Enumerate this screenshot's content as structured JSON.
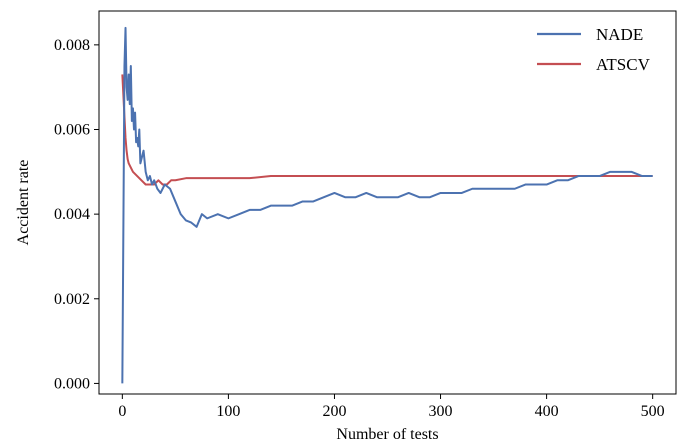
{
  "chart_data": {
    "type": "line",
    "title": "",
    "xlabel": "Number of tests",
    "ylabel": "Accident rate",
    "xlim": [
      -22,
      522
    ],
    "ylim": [
      -0.00025,
      0.0088
    ],
    "x_ticks": [
      0,
      100,
      200,
      300,
      400,
      500
    ],
    "x_tick_labels": [
      "0",
      "100",
      "200",
      "300",
      "400",
      "500"
    ],
    "y_ticks": [
      0.0,
      0.002,
      0.004,
      0.006,
      0.008
    ],
    "y_tick_labels": [
      "0.000",
      "0.002",
      "0.004",
      "0.006",
      "0.008"
    ],
    "grid": false,
    "legend_position": "top-right",
    "series": [
      {
        "name": "NADE",
        "color": "#4c72b0",
        "x": [
          0,
          2,
          3,
          4,
          5,
          6,
          7,
          8,
          9,
          10,
          11,
          12,
          13,
          14,
          15,
          16,
          17,
          18,
          20,
          22,
          24,
          26,
          28,
          30,
          33,
          36,
          40,
          45,
          50,
          55,
          60,
          65,
          70,
          75,
          80,
          90,
          100,
          110,
          120,
          130,
          140,
          150,
          160,
          170,
          180,
          190,
          200,
          210,
          220,
          230,
          240,
          250,
          260,
          270,
          280,
          290,
          300,
          310,
          320,
          330,
          340,
          350,
          360,
          370,
          380,
          390,
          400,
          410,
          420,
          430,
          440,
          450,
          460,
          470,
          480,
          490,
          500
        ],
        "values": [
          0.0,
          0.0075,
          0.0084,
          0.007,
          0.0067,
          0.0073,
          0.0066,
          0.0075,
          0.0062,
          0.0065,
          0.006,
          0.0064,
          0.0057,
          0.0058,
          0.0056,
          0.006,
          0.0052,
          0.0053,
          0.0055,
          0.005,
          0.0048,
          0.0049,
          0.0047,
          0.0048,
          0.0046,
          0.0045,
          0.0047,
          0.0046,
          0.0043,
          0.004,
          0.00385,
          0.0038,
          0.0037,
          0.004,
          0.0039,
          0.004,
          0.0039,
          0.004,
          0.0041,
          0.0041,
          0.0042,
          0.0042,
          0.0042,
          0.0043,
          0.0043,
          0.0044,
          0.0045,
          0.0044,
          0.0044,
          0.0045,
          0.0044,
          0.0044,
          0.0044,
          0.0045,
          0.0044,
          0.0044,
          0.0045,
          0.0045,
          0.0045,
          0.0046,
          0.0046,
          0.0046,
          0.0046,
          0.0046,
          0.0047,
          0.0047,
          0.0047,
          0.0048,
          0.0048,
          0.0049,
          0.0049,
          0.0049,
          0.005,
          0.005,
          0.005,
          0.0049,
          0.0049
        ]
      },
      {
        "name": "ATSCV",
        "color": "#c44e52",
        "x": [
          0,
          1,
          2,
          3,
          4,
          5,
          6,
          8,
          10,
          14,
          18,
          22,
          26,
          30,
          34,
          38,
          42,
          46,
          50,
          60,
          70,
          80,
          90,
          100,
          120,
          140,
          160,
          180,
          200,
          250,
          300,
          350,
          400,
          450,
          500
        ],
        "values": [
          0.0073,
          0.0068,
          0.0063,
          0.0058,
          0.0055,
          0.0053,
          0.0052,
          0.0051,
          0.005,
          0.0049,
          0.0048,
          0.0047,
          0.0047,
          0.0047,
          0.0048,
          0.0047,
          0.0047,
          0.0048,
          0.0048,
          0.00485,
          0.00485,
          0.00485,
          0.00485,
          0.00485,
          0.00485,
          0.0049,
          0.0049,
          0.0049,
          0.0049,
          0.0049,
          0.0049,
          0.0049,
          0.0049,
          0.0049,
          0.0049
        ]
      }
    ]
  }
}
